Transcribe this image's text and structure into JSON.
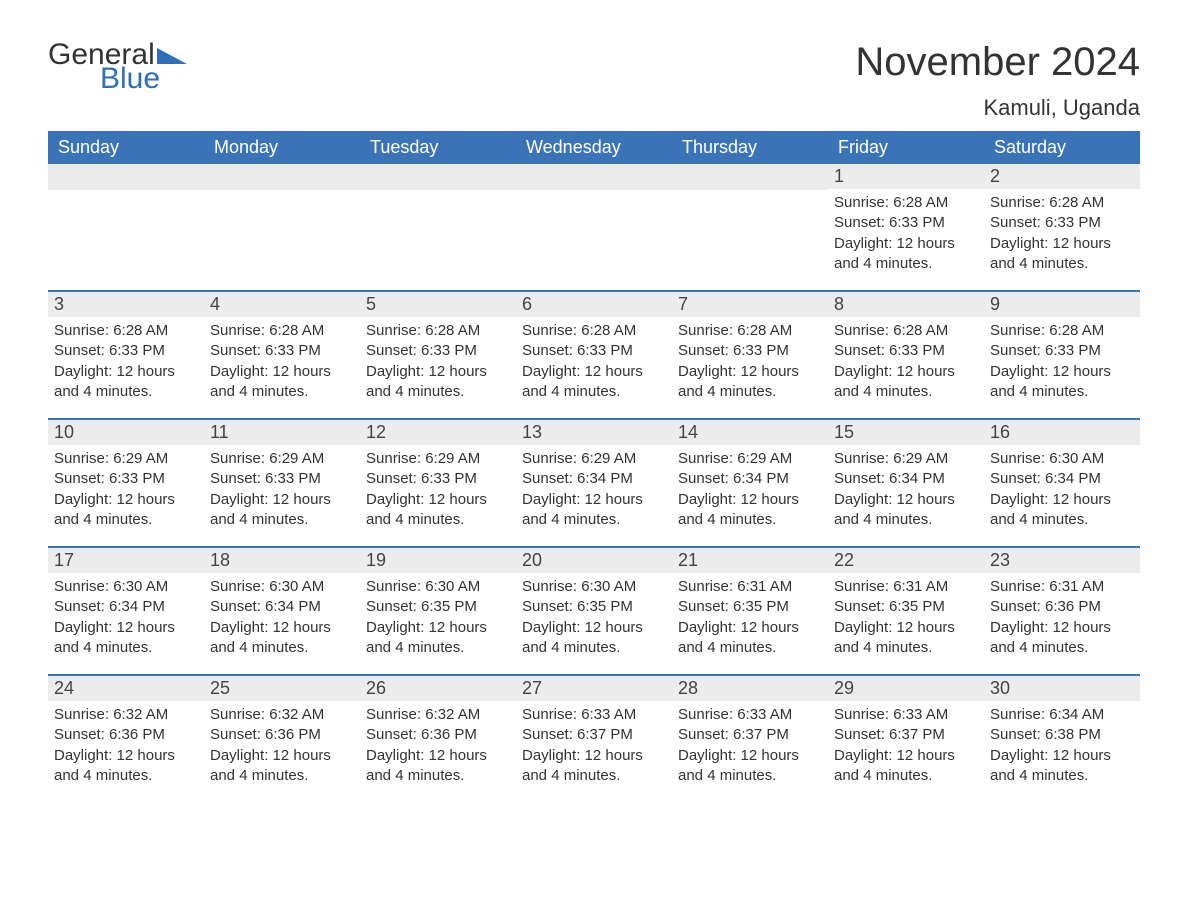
{
  "logo": {
    "text1": "General",
    "text2": "Blue"
  },
  "title": "November 2024",
  "location": "Kamuli, Uganda",
  "colors": {
    "header_bg": "#3b74b6",
    "header_text": "#ffffff",
    "daynum_bg": "#ececec",
    "border": "#3b74b6",
    "body_text": "#333333",
    "logo_blue": "#2f6fb3"
  },
  "day_headers": [
    "Sunday",
    "Monday",
    "Tuesday",
    "Wednesday",
    "Thursday",
    "Friday",
    "Saturday"
  ],
  "weeks": [
    [
      {
        "day": "",
        "sunrise": "",
        "sunset": "",
        "daylight": ""
      },
      {
        "day": "",
        "sunrise": "",
        "sunset": "",
        "daylight": ""
      },
      {
        "day": "",
        "sunrise": "",
        "sunset": "",
        "daylight": ""
      },
      {
        "day": "",
        "sunrise": "",
        "sunset": "",
        "daylight": ""
      },
      {
        "day": "",
        "sunrise": "",
        "sunset": "",
        "daylight": ""
      },
      {
        "day": "1",
        "sunrise": "Sunrise: 6:28 AM",
        "sunset": "Sunset: 6:33 PM",
        "daylight": "Daylight: 12 hours and 4 minutes."
      },
      {
        "day": "2",
        "sunrise": "Sunrise: 6:28 AM",
        "sunset": "Sunset: 6:33 PM",
        "daylight": "Daylight: 12 hours and 4 minutes."
      }
    ],
    [
      {
        "day": "3",
        "sunrise": "Sunrise: 6:28 AM",
        "sunset": "Sunset: 6:33 PM",
        "daylight": "Daylight: 12 hours and 4 minutes."
      },
      {
        "day": "4",
        "sunrise": "Sunrise: 6:28 AM",
        "sunset": "Sunset: 6:33 PM",
        "daylight": "Daylight: 12 hours and 4 minutes."
      },
      {
        "day": "5",
        "sunrise": "Sunrise: 6:28 AM",
        "sunset": "Sunset: 6:33 PM",
        "daylight": "Daylight: 12 hours and 4 minutes."
      },
      {
        "day": "6",
        "sunrise": "Sunrise: 6:28 AM",
        "sunset": "Sunset: 6:33 PM",
        "daylight": "Daylight: 12 hours and 4 minutes."
      },
      {
        "day": "7",
        "sunrise": "Sunrise: 6:28 AM",
        "sunset": "Sunset: 6:33 PM",
        "daylight": "Daylight: 12 hours and 4 minutes."
      },
      {
        "day": "8",
        "sunrise": "Sunrise: 6:28 AM",
        "sunset": "Sunset: 6:33 PM",
        "daylight": "Daylight: 12 hours and 4 minutes."
      },
      {
        "day": "9",
        "sunrise": "Sunrise: 6:28 AM",
        "sunset": "Sunset: 6:33 PM",
        "daylight": "Daylight: 12 hours and 4 minutes."
      }
    ],
    [
      {
        "day": "10",
        "sunrise": "Sunrise: 6:29 AM",
        "sunset": "Sunset: 6:33 PM",
        "daylight": "Daylight: 12 hours and 4 minutes."
      },
      {
        "day": "11",
        "sunrise": "Sunrise: 6:29 AM",
        "sunset": "Sunset: 6:33 PM",
        "daylight": "Daylight: 12 hours and 4 minutes."
      },
      {
        "day": "12",
        "sunrise": "Sunrise: 6:29 AM",
        "sunset": "Sunset: 6:33 PM",
        "daylight": "Daylight: 12 hours and 4 minutes."
      },
      {
        "day": "13",
        "sunrise": "Sunrise: 6:29 AM",
        "sunset": "Sunset: 6:34 PM",
        "daylight": "Daylight: 12 hours and 4 minutes."
      },
      {
        "day": "14",
        "sunrise": "Sunrise: 6:29 AM",
        "sunset": "Sunset: 6:34 PM",
        "daylight": "Daylight: 12 hours and 4 minutes."
      },
      {
        "day": "15",
        "sunrise": "Sunrise: 6:29 AM",
        "sunset": "Sunset: 6:34 PM",
        "daylight": "Daylight: 12 hours and 4 minutes."
      },
      {
        "day": "16",
        "sunrise": "Sunrise: 6:30 AM",
        "sunset": "Sunset: 6:34 PM",
        "daylight": "Daylight: 12 hours and 4 minutes."
      }
    ],
    [
      {
        "day": "17",
        "sunrise": "Sunrise: 6:30 AM",
        "sunset": "Sunset: 6:34 PM",
        "daylight": "Daylight: 12 hours and 4 minutes."
      },
      {
        "day": "18",
        "sunrise": "Sunrise: 6:30 AM",
        "sunset": "Sunset: 6:34 PM",
        "daylight": "Daylight: 12 hours and 4 minutes."
      },
      {
        "day": "19",
        "sunrise": "Sunrise: 6:30 AM",
        "sunset": "Sunset: 6:35 PM",
        "daylight": "Daylight: 12 hours and 4 minutes."
      },
      {
        "day": "20",
        "sunrise": "Sunrise: 6:30 AM",
        "sunset": "Sunset: 6:35 PM",
        "daylight": "Daylight: 12 hours and 4 minutes."
      },
      {
        "day": "21",
        "sunrise": "Sunrise: 6:31 AM",
        "sunset": "Sunset: 6:35 PM",
        "daylight": "Daylight: 12 hours and 4 minutes."
      },
      {
        "day": "22",
        "sunrise": "Sunrise: 6:31 AM",
        "sunset": "Sunset: 6:35 PM",
        "daylight": "Daylight: 12 hours and 4 minutes."
      },
      {
        "day": "23",
        "sunrise": "Sunrise: 6:31 AM",
        "sunset": "Sunset: 6:36 PM",
        "daylight": "Daylight: 12 hours and 4 minutes."
      }
    ],
    [
      {
        "day": "24",
        "sunrise": "Sunrise: 6:32 AM",
        "sunset": "Sunset: 6:36 PM",
        "daylight": "Daylight: 12 hours and 4 minutes."
      },
      {
        "day": "25",
        "sunrise": "Sunrise: 6:32 AM",
        "sunset": "Sunset: 6:36 PM",
        "daylight": "Daylight: 12 hours and 4 minutes."
      },
      {
        "day": "26",
        "sunrise": "Sunrise: 6:32 AM",
        "sunset": "Sunset: 6:36 PM",
        "daylight": "Daylight: 12 hours and 4 minutes."
      },
      {
        "day": "27",
        "sunrise": "Sunrise: 6:33 AM",
        "sunset": "Sunset: 6:37 PM",
        "daylight": "Daylight: 12 hours and 4 minutes."
      },
      {
        "day": "28",
        "sunrise": "Sunrise: 6:33 AM",
        "sunset": "Sunset: 6:37 PM",
        "daylight": "Daylight: 12 hours and 4 minutes."
      },
      {
        "day": "29",
        "sunrise": "Sunrise: 6:33 AM",
        "sunset": "Sunset: 6:37 PM",
        "daylight": "Daylight: 12 hours and 4 minutes."
      },
      {
        "day": "30",
        "sunrise": "Sunrise: 6:34 AM",
        "sunset": "Sunset: 6:38 PM",
        "daylight": "Daylight: 12 hours and 4 minutes."
      }
    ]
  ]
}
